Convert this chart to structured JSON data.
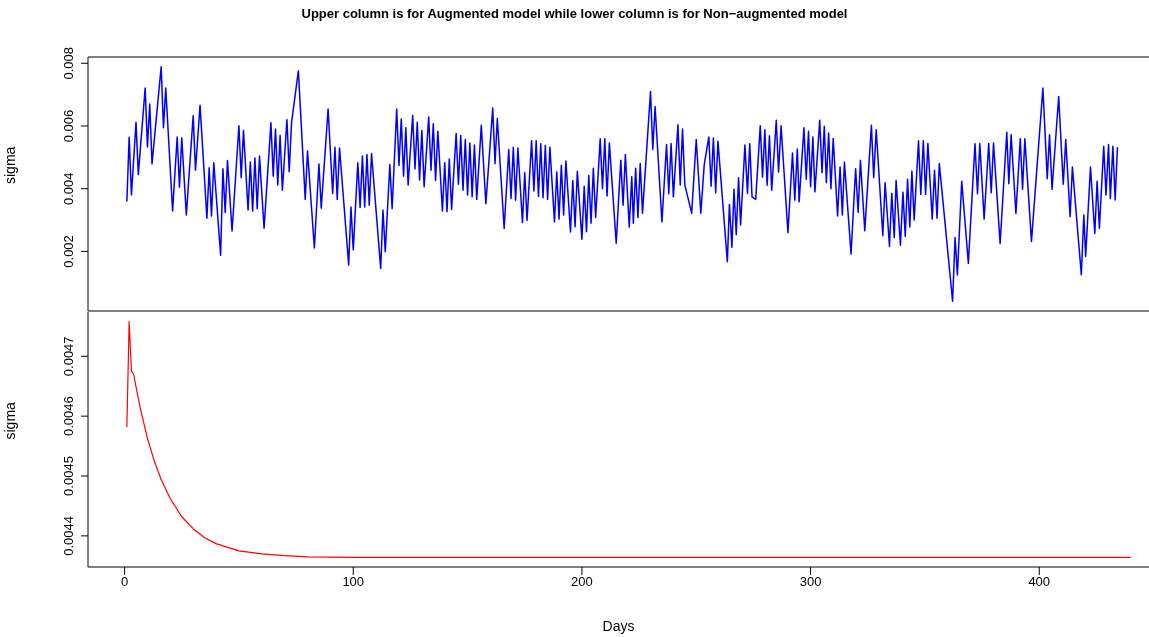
{
  "chart_data": [
    {
      "type": "line",
      "title": "Upper column is for Augmented model while lower column is for Non−augmented model",
      "ylabel": "sigma",
      "xlim": [
        -16,
        448
      ],
      "xticks": [
        0,
        100,
        200,
        300,
        400
      ],
      "ylim": [
        0.0001,
        0.0082
      ],
      "yticks": [
        0.002,
        0.004,
        0.006,
        0.008
      ],
      "tick_labels": "y",
      "series": [
        {
          "color": "#0000ff",
          "x": [
            1,
            2,
            3,
            5,
            6,
            9,
            10,
            11,
            12,
            16,
            17,
            18,
            21,
            23,
            24,
            25,
            27,
            30,
            31,
            33,
            36,
            37,
            38,
            39,
            42,
            43,
            44,
            45,
            47,
            50,
            51,
            52,
            54,
            55,
            56,
            57,
            58,
            59,
            61,
            64,
            65,
            66,
            67,
            68,
            69,
            71,
            72,
            73,
            76,
            79,
            80,
            83,
            85,
            86,
            89,
            91,
            92,
            93,
            94,
            98,
            99,
            100,
            102,
            103,
            104,
            105,
            106,
            107,
            108,
            112,
            113,
            114,
            116,
            117,
            119,
            120,
            121,
            122,
            123,
            124,
            126,
            127,
            128,
            129,
            130,
            131,
            133,
            134,
            135,
            136,
            137,
            139,
            140,
            141,
            142,
            143,
            145,
            146,
            147,
            148,
            149,
            150,
            151,
            152,
            153,
            154,
            156,
            158,
            161,
            162,
            163,
            166,
            168,
            169,
            170,
            171,
            172,
            174,
            175,
            176,
            178,
            179,
            180,
            181,
            182,
            183,
            184,
            185,
            186,
            188,
            189,
            190,
            191,
            192,
            193,
            195,
            196,
            197,
            198,
            200,
            201,
            202,
            203,
            204,
            205,
            206,
            208,
            209,
            210,
            211,
            212,
            215,
            217,
            218,
            219,
            220.7,
            221.8,
            222.5,
            223.5,
            224.5,
            225.5,
            226.5,
            230,
            231,
            232,
            235,
            237,
            238,
            239,
            240,
            242,
            243,
            244,
            245,
            248,
            250,
            252,
            253.5,
            255.5,
            256.5,
            257.5,
            258.5,
            259.5,
            263.6,
            264.5,
            265.6,
            266.5,
            267.5,
            268.5,
            269.4,
            271.3,
            272.4,
            273.4,
            274.4,
            276,
            278,
            279,
            280,
            281,
            282,
            283,
            285,
            286,
            287.1,
            290.1,
            292.1,
            293.1,
            294.2,
            295,
            297.1,
            298.1,
            299.1,
            300,
            301,
            301.9,
            304,
            305,
            306,
            306.9,
            307.9,
            308.9,
            309.9,
            311.8,
            312.9,
            313.9,
            314.8,
            317.7,
            319.7,
            320.8,
            321.8,
            323.7,
            326.6,
            327.6,
            328.7,
            331.6,
            332.6,
            334.5,
            335.5,
            336.6,
            337.4,
            339.3,
            340.4,
            341.4,
            342.4,
            343.4,
            344.3,
            345.3,
            347.2,
            348.2,
            349.3,
            350.3,
            351.3,
            353.2,
            354.2,
            355.3,
            356.3,
            362.1,
            363.2,
            364.2,
            366.1,
            369,
            371.9,
            373,
            374,
            375.9,
            377.9,
            379,
            380,
            382.9,
            385.8,
            386.7,
            387.7,
            389.8,
            391.7,
            392.7,
            393.7,
            396.6,
            401.6,
            403.5,
            404.5,
            405.6,
            408.5,
            410.5,
            411.6,
            413.5,
            414.5,
            418.4,
            419.5,
            420.3,
            422.4,
            424.3,
            425.3,
            426.3,
            428.2,
            429.2,
            430.3,
            431.1,
            432.2,
            433.2,
            434.2
          ],
          "values": [
            0.00359,
            0.00564,
            0.0038,
            0.00612,
            0.00445,
            0.00721,
            0.00533,
            0.0067,
            0.00479,
            0.00789,
            0.00594,
            0.00721,
            0.00329,
            0.00565,
            0.00405,
            0.00562,
            0.00316,
            0.00633,
            0.00459,
            0.00666,
            0.00306,
            0.00467,
            0.00313,
            0.00483,
            0.00188,
            0.00464,
            0.00324,
            0.0049,
            0.00265,
            0.00601,
            0.00435,
            0.00586,
            0.00332,
            0.00485,
            0.00329,
            0.00498,
            0.00336,
            0.00504,
            0.00274,
            0.0061,
            0.0044,
            0.0059,
            0.00412,
            0.0057,
            0.00395,
            0.0062,
            0.00454,
            0.0061,
            0.00776,
            0.00366,
            0.0052,
            0.00211,
            0.00479,
            0.00338,
            0.00654,
            0.00385,
            0.00532,
            0.00366,
            0.0053,
            0.00157,
            0.00342,
            0.00205,
            0.00483,
            0.0034,
            0.00504,
            0.00342,
            0.00509,
            0.00347,
            0.00512,
            0.00146,
            0.00332,
            0.00199,
            0.00477,
            0.00336,
            0.00654,
            0.00474,
            0.00622,
            0.0044,
            0.00594,
            0.00412,
            0.00634,
            0.00463,
            0.00612,
            0.00428,
            0.00586,
            0.00406,
            0.00629,
            0.00459,
            0.00607,
            0.00426,
            0.00583,
            0.00329,
            0.00483,
            0.00327,
            0.00495,
            0.00334,
            0.00576,
            0.00414,
            0.0057,
            0.00395,
            0.00557,
            0.0038,
            0.00546,
            0.00374,
            0.00539,
            0.00366,
            0.00602,
            0.00352,
            0.00657,
            0.0048,
            0.00624,
            0.00273,
            0.00525,
            0.00369,
            0.00532,
            0.00363,
            0.0053,
            0.00292,
            0.00451,
            0.00299,
            0.00553,
            0.00393,
            0.00553,
            0.00375,
            0.00543,
            0.00371,
            0.00538,
            0.00366,
            0.00532,
            0.00294,
            0.00453,
            0.00303,
            0.00475,
            0.00316,
            0.00488,
            0.00262,
            0.00426,
            0.00279,
            0.00456,
            0.00239,
            0.00408,
            0.00263,
            0.00442,
            0.0029,
            0.00465,
            0.00308,
            0.00559,
            0.004,
            0.00559,
            0.00377,
            0.00546,
            0.00226,
            0.00491,
            0.00347,
            0.00509,
            0.00278,
            0.00438,
            0.0029,
            0.00465,
            0.00308,
            0.0048,
            0.00322,
            0.0071,
            0.00525,
            0.00662,
            0.00294,
            0.00541,
            0.00384,
            0.00544,
            0.00374,
            0.00604,
            0.00412,
            0.0059,
            0.00412,
            0.00322,
            0.00557,
            0.00322,
            0.00477,
            0.00565,
            0.00408,
            0.00562,
            0.00387,
            0.00551,
            0.00167,
            0.0035,
            0.00213,
            0.00398,
            0.00253,
            0.00435,
            0.00284,
            0.00539,
            0.00385,
            0.00543,
            0.00374,
            0.00366,
            0.00601,
            0.00437,
            0.00588,
            0.00411,
            0.00569,
            0.00395,
            0.00618,
            0.00453,
            0.00601,
            0.0026,
            0.00514,
            0.00363,
            0.00527,
            0.00358,
            0.00594,
            0.0043,
            0.00583,
            0.00406,
            0.00565,
            0.0039,
            0.00618,
            0.00451,
            0.00599,
            0.00419,
            0.00578,
            0.004,
            0.0056,
            0.00313,
            0.00469,
            0.00316,
            0.00485,
            0.00192,
            0.00464,
            0.00324,
            0.00491,
            0.00266,
            0.00602,
            0.00435,
            0.00588,
            0.0025,
            0.00419,
            0.00216,
            0.00385,
            0.00244,
            0.00426,
            0.0022,
            0.00389,
            0.00248,
            0.0043,
            0.00278,
            0.00456,
            0.003,
            0.00553,
            0.00382,
            0.00553,
            0.00382,
            0.00544,
            0.00303,
            0.00459,
            0.00306,
            0.0048,
            0.00041,
            0.00244,
            0.00125,
            0.00424,
            0.00162,
            0.00543,
            0.00384,
            0.00544,
            0.00303,
            0.00544,
            0.00387,
            0.00546,
            0.00225,
            0.0058,
            0.00416,
            0.00572,
            0.00321,
            0.00559,
            0.00398,
            0.00559,
            0.00232,
            0.00721,
            0.00432,
            0.00572,
            0.00398,
            0.00694,
            0.00414,
            0.00557,
            0.00311,
            0.00469,
            0.00126,
            0.00316,
            0.00184,
            0.00469,
            0.00257,
            0.00424,
            0.00274,
            0.00535,
            0.0038,
            0.00541,
            0.00369,
            0.00535,
            0.00364,
            0.00532
          ]
        }
      ]
    },
    {
      "type": "line",
      "xlabel": "Days",
      "ylabel": "sigma",
      "xlim": [
        -16,
        448
      ],
      "xticks": [
        0,
        100,
        200,
        300,
        400
      ],
      "ylim": [
        0.004348,
        0.004774
      ],
      "yticks": [
        0.0044,
        0.0045,
        0.0046,
        0.0047
      ],
      "series": [
        {
          "color": "#ff0000",
          "x": [
            1,
            2,
            3,
            4,
            5,
            7,
            10,
            13,
            16,
            20,
            25,
            30,
            35,
            40,
            50,
            60,
            70,
            80,
            100,
            150,
            200,
            300,
            440
          ],
          "values": [
            0.004582,
            0.004758,
            0.004675,
            0.00467,
            0.004649,
            0.004611,
            0.004563,
            0.004525,
            0.004494,
            0.004462,
            0.004432,
            0.004412,
            0.004397,
            0.004387,
            0.004375,
            0.00437,
            0.004367,
            0.004365,
            0.004364,
            0.004364,
            0.004364,
            0.004364,
            0.004364
          ]
        }
      ]
    }
  ]
}
